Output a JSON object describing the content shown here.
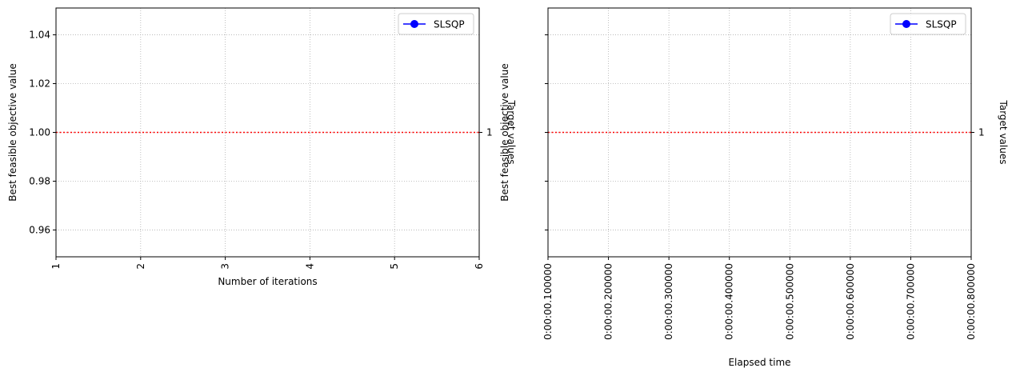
{
  "chart_data": [
    {
      "type": "line",
      "xlabel": "Number of iterations",
      "ylabel": "Best feasible objective value",
      "right_label": "Target values",
      "x_ticks": [
        "1",
        "2",
        "3",
        "4",
        "5",
        "6"
      ],
      "x_tick_values": [
        1,
        2,
        3,
        4,
        5,
        6
      ],
      "xlim": [
        1,
        6
      ],
      "y_ticks": [
        "0.96",
        "0.98",
        "1.00",
        "1.02",
        "1.04"
      ],
      "y_tick_values": [
        0.96,
        0.98,
        1.0,
        1.02,
        1.04
      ],
      "ylim": [
        0.949,
        1.051
      ],
      "right_ticks": [
        "1"
      ],
      "right_tick_values": [
        1.0
      ],
      "target_value": 1.0,
      "grid": true,
      "legend_position": "top-right",
      "series": [
        {
          "name": "SLSQP",
          "color": "#0000ff",
          "x": [],
          "y": []
        }
      ],
      "target_color": "#ff0000"
    },
    {
      "type": "line",
      "xlabel": "Elapsed time",
      "ylabel": "Best feasible objective value",
      "right_label": "Target values",
      "x_ticks": [
        "0:00:00.100000",
        "0:00:00.200000",
        "0:00:00.300000",
        "0:00:00.400000",
        "0:00:00.500000",
        "0:00:00.600000",
        "0:00:00.700000",
        "0:00:00.800000"
      ],
      "x_tick_values": [
        0.1,
        0.2,
        0.3,
        0.4,
        0.5,
        0.6,
        0.7,
        0.8
      ],
      "xlim": [
        0.1,
        0.8
      ],
      "y_ticks": [
        "",
        "",
        "",
        "",
        ""
      ],
      "y_tick_values": [
        0.96,
        0.98,
        1.0,
        1.02,
        1.04
      ],
      "ylim": [
        0.949,
        1.051
      ],
      "right_ticks": [
        "1"
      ],
      "right_tick_values": [
        1.0
      ],
      "target_value": 1.0,
      "grid": true,
      "legend_position": "top-right",
      "series": [
        {
          "name": "SLSQP",
          "color": "#0000ff",
          "x": [],
          "y": []
        }
      ],
      "target_color": "#ff0000"
    }
  ]
}
